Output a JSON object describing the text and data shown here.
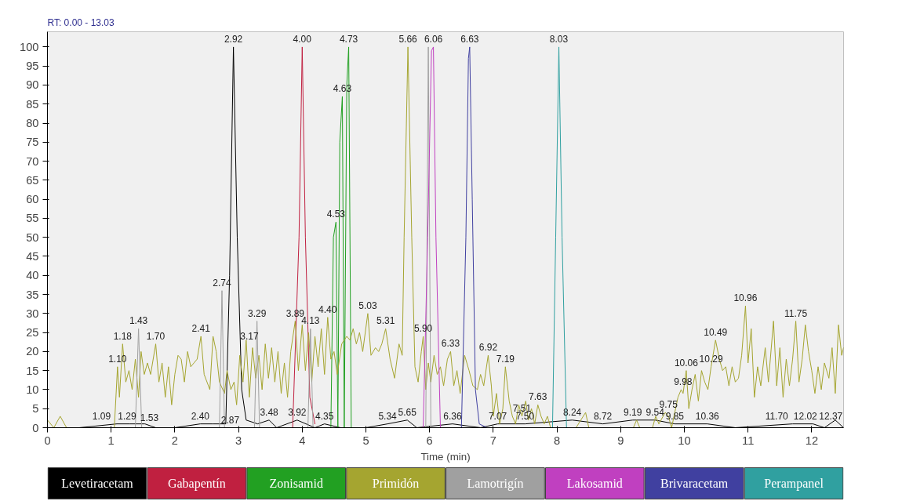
{
  "chart_data": {
    "type": "line",
    "xlabel": "Time (min)",
    "xlim": [
      0,
      12.5
    ],
    "ylim": [
      0,
      104
    ],
    "xticks": [
      0,
      1,
      2,
      3,
      4,
      5,
      6,
      7,
      8,
      9,
      10,
      11,
      12
    ],
    "yticks": [
      0,
      5,
      10,
      15,
      20,
      25,
      30,
      35,
      40,
      45,
      50,
      55,
      60,
      65,
      70,
      75,
      80,
      85,
      90,
      95,
      100
    ],
    "grid": false,
    "legend": "bottom",
    "marker": "none",
    "line_style": "solid",
    "series": [
      {
        "name": "Levetiracetam",
        "color": "#000000",
        "x": [
          0,
          0.5,
          1.09,
          1.29,
          1.53,
          1.7,
          2.0,
          2.4,
          2.6,
          2.8,
          2.86,
          2.92,
          2.98,
          3.05,
          3.12,
          3.3,
          3.48,
          3.6,
          3.92,
          4.2,
          4.35,
          4.6,
          5.0,
          5.34,
          5.65,
          5.8,
          6.36,
          6.8,
          7.07,
          7.5,
          8.24,
          8.72,
          9.19,
          9.54,
          9.85,
          10.36,
          10.8,
          11.7,
          12.02,
          12.2,
          12.37,
          12.5
        ],
        "values": [
          0,
          0,
          1,
          1,
          1,
          0,
          0,
          1,
          1,
          1,
          40,
          100,
          50,
          10,
          2,
          1,
          2,
          0,
          2,
          0,
          1,
          0,
          0,
          1,
          2,
          0,
          1,
          0,
          1,
          1,
          2,
          1,
          2,
          2,
          1,
          1,
          0,
          1,
          1,
          0,
          2,
          0
        ]
      },
      {
        "name": "Gabapentín",
        "color": "#c02040",
        "x": [
          0,
          3.85,
          3.95,
          4.0,
          4.05,
          4.12,
          4.2
        ],
        "values": [
          0,
          0,
          50,
          100,
          50,
          8,
          1
        ]
      },
      {
        "name": "Zonisamid",
        "color": "#22a022",
        "x": [
          0,
          4.45,
          4.49,
          4.53,
          4.56,
          4.59,
          4.63,
          4.66,
          4.7,
          4.73,
          4.77
        ],
        "values": [
          0,
          0,
          50,
          54,
          0,
          75,
          87,
          0,
          90,
          100,
          0
        ]
      },
      {
        "name": "Primidón",
        "color": "#a5a530",
        "x": [
          0,
          0.1,
          0.2,
          0.3,
          0.45,
          1.05,
          1.1,
          1.13,
          1.18,
          1.23,
          1.28,
          1.33,
          1.38,
          1.43,
          1.47,
          1.52,
          1.57,
          1.62,
          1.7,
          1.75,
          1.8,
          1.85,
          1.9,
          1.95,
          2.0,
          2.05,
          2.1,
          2.15,
          2.2,
          2.25,
          2.3,
          2.35,
          2.41,
          2.46,
          2.55,
          2.6,
          2.65,
          2.7,
          2.78,
          2.82,
          2.88,
          2.93,
          2.97,
          3.02,
          3.07,
          3.12,
          3.17,
          3.22,
          3.27,
          3.32,
          3.37,
          3.42,
          3.47,
          3.52,
          3.57,
          3.62,
          3.67,
          3.72,
          3.77,
          3.82,
          3.89,
          3.94,
          4.0,
          4.05,
          4.1,
          4.15,
          4.2,
          4.25,
          4.3,
          4.35,
          4.4,
          4.45,
          4.5,
          4.55,
          4.62,
          4.7,
          4.75,
          4.8,
          4.85,
          4.9,
          4.95,
          5.03,
          5.08,
          5.15,
          5.2,
          5.25,
          5.31,
          5.38,
          5.45,
          5.52,
          5.57,
          5.6,
          5.66,
          5.72,
          5.77,
          5.82,
          5.87,
          5.9,
          5.94,
          5.98,
          6.02,
          6.07,
          6.12,
          6.17,
          6.22,
          6.28,
          6.33,
          6.38,
          6.43,
          6.48,
          6.55,
          6.62,
          6.68,
          6.75,
          6.8,
          6.85,
          6.92,
          6.97,
          7.0,
          7.05,
          7.1,
          7.15,
          7.19,
          7.25,
          7.3,
          7.35,
          7.4,
          7.45,
          7.51,
          7.55,
          7.6,
          7.65,
          7.7,
          7.75,
          7.8,
          7.85,
          7.9,
          8.3,
          8.45,
          8.5,
          9.2,
          9.25,
          9.3,
          9.5,
          9.55,
          9.6,
          9.7,
          9.75,
          9.8,
          9.9,
          9.95,
          9.98,
          10.03,
          10.07,
          10.12,
          10.17,
          10.22,
          10.27,
          10.32,
          10.37,
          10.42,
          10.49,
          10.55,
          10.6,
          10.65,
          10.7,
          10.75,
          10.8,
          10.85,
          10.9,
          10.96,
          11.0,
          11.05,
          11.1,
          11.15,
          11.2,
          11.27,
          11.32,
          11.4,
          11.45,
          11.5,
          11.55,
          11.6,
          11.65,
          11.7,
          11.75,
          11.8,
          11.85,
          11.9,
          11.95,
          12.0,
          12.05,
          12.1,
          12.15,
          12.2,
          12.27,
          12.32,
          12.37,
          12.42,
          12.47,
          12.5
        ],
        "values": [
          2,
          0,
          3,
          0,
          0,
          0,
          16,
          8,
          22,
          12,
          15,
          10,
          18,
          8,
          20,
          14,
          17,
          14,
          22,
          12,
          17,
          8,
          16,
          6,
          14,
          19,
          18,
          12,
          20,
          16,
          17,
          18,
          24,
          14,
          10,
          24,
          20,
          12,
          9,
          15,
          10,
          12,
          6,
          19,
          12,
          23,
          8,
          21,
          13,
          19,
          10,
          22,
          13,
          21,
          12,
          20,
          9,
          17,
          8,
          20,
          28,
          15,
          27,
          15,
          25,
          12,
          24,
          16,
          26,
          14,
          29,
          18,
          20,
          14,
          22,
          24,
          23,
          26,
          22,
          25,
          20,
          30,
          19,
          21,
          20,
          22,
          26,
          18,
          13,
          22,
          19,
          50,
          100,
          50,
          16,
          12,
          20,
          24,
          10,
          17,
          12,
          19,
          14,
          16,
          11,
          18,
          20,
          11,
          15,
          9,
          19,
          15,
          11,
          10,
          14,
          11,
          19,
          11,
          3,
          9,
          1,
          5,
          16,
          7,
          3,
          1,
          6,
          3,
          7,
          2,
          5,
          1,
          6,
          3,
          1,
          3,
          0,
          0,
          4,
          0,
          0,
          2,
          0,
          0,
          3,
          1,
          4,
          3,
          0,
          8,
          10,
          9,
          15,
          5,
          10,
          14,
          7,
          15,
          12,
          10,
          16,
          23,
          18,
          15,
          16,
          11,
          16,
          12,
          13,
          19,
          32,
          17,
          26,
          8,
          16,
          11,
          21,
          12,
          28,
          11,
          21,
          8,
          18,
          11,
          18,
          28,
          12,
          18,
          27,
          20,
          15,
          9,
          16,
          10,
          17,
          13,
          21,
          9,
          27,
          19,
          21
        ]
      },
      {
        "name": "Lamotrigín",
        "color": "#a0a0a0",
        "x": [
          0,
          1.38,
          1.43,
          1.48,
          2.7,
          2.74,
          2.78,
          3.25,
          3.29,
          3.33,
          4.09,
          4.13,
          4.17,
          5.94,
          5.98,
          6.02
        ],
        "values": [
          0,
          0,
          26,
          0,
          0,
          36,
          0,
          0,
          28,
          0,
          0,
          26,
          0,
          0,
          100,
          0
        ]
      },
      {
        "name": "Lakosamid",
        "color": "#c040c0",
        "x": [
          0,
          5.9,
          5.97,
          6.03,
          6.06,
          6.1,
          6.17
        ],
        "values": [
          0,
          0,
          50,
          99,
          100,
          50,
          0
        ]
      },
      {
        "name": "Brivaracetam",
        "color": "#4040a0",
        "x": [
          0,
          6.5,
          6.57,
          6.61,
          6.63,
          6.67,
          6.72,
          6.78,
          6.9
        ],
        "values": [
          0,
          0,
          50,
          97,
          100,
          60,
          10,
          1,
          0
        ]
      },
      {
        "name": "Perampanel",
        "color": "#30a0a0",
        "x": [
          0,
          7.93,
          7.98,
          8.03,
          8.08,
          8.15
        ],
        "values": [
          0,
          0,
          50,
          100,
          50,
          0
        ]
      }
    ],
    "annotations": [
      "RT: 0.00 - 13.03",
      {
        "text": "1.09",
        "x": 0.85,
        "y": 1
      },
      {
        "text": "1.10",
        "x": 1.1,
        "y": 16
      },
      {
        "text": "1.18",
        "x": 1.18,
        "y": 22
      },
      {
        "text": "1.29",
        "x": 1.25,
        "y": 1
      },
      {
        "text": "1.43",
        "x": 1.43,
        "y": 26
      },
      {
        "text": "1.53",
        "x": 1.6,
        "y": 0.5
      },
      {
        "text": "1.70",
        "x": 1.7,
        "y": 22
      },
      {
        "text": "2.40",
        "x": 2.4,
        "y": 1
      },
      {
        "text": "2.41",
        "x": 2.41,
        "y": 24
      },
      {
        "text": "2.74",
        "x": 2.74,
        "y": 36
      },
      {
        "text": "2.87",
        "x": 2.87,
        "y": 0
      },
      {
        "text": "2.92",
        "x": 2.92,
        "y": 100
      },
      {
        "text": "3.17",
        "x": 3.17,
        "y": 22
      },
      {
        "text": "3.29",
        "x": 3.29,
        "y": 28
      },
      {
        "text": "3.48",
        "x": 3.48,
        "y": 2
      },
      {
        "text": "3.89",
        "x": 3.89,
        "y": 28
      },
      {
        "text": "3.92",
        "x": 3.92,
        "y": 2
      },
      {
        "text": "4.00",
        "x": 4.0,
        "y": 100
      },
      {
        "text": "4.13",
        "x": 4.13,
        "y": 26
      },
      {
        "text": "4.35",
        "x": 4.35,
        "y": 1
      },
      {
        "text": "4.40",
        "x": 4.4,
        "y": 29
      },
      {
        "text": "4.53",
        "x": 4.53,
        "y": 54
      },
      {
        "text": "4.63",
        "x": 4.63,
        "y": 87
      },
      {
        "text": "4.73",
        "x": 4.73,
        "y": 100
      },
      {
        "text": "5.03",
        "x": 5.03,
        "y": 30
      },
      {
        "text": "5.31",
        "x": 5.31,
        "y": 26
      },
      {
        "text": "5.34",
        "x": 5.34,
        "y": 1
      },
      {
        "text": "5.65",
        "x": 5.65,
        "y": 2
      },
      {
        "text": "5.66",
        "x": 5.66,
        "y": 100
      },
      {
        "text": "5.90",
        "x": 5.9,
        "y": 24
      },
      {
        "text": "6.06",
        "x": 6.06,
        "y": 100
      },
      {
        "text": "6.33",
        "x": 6.33,
        "y": 20
      },
      {
        "text": "6.36",
        "x": 6.36,
        "y": 1
      },
      {
        "text": "6.63",
        "x": 6.63,
        "y": 100
      },
      {
        "text": "6.92",
        "x": 6.92,
        "y": 19
      },
      {
        "text": "7.07",
        "x": 7.07,
        "y": 1
      },
      {
        "text": "7.19",
        "x": 7.19,
        "y": 16
      },
      {
        "text": "7.50",
        "x": 7.5,
        "y": 1
      },
      {
        "text": "7.51",
        "x": 7.45,
        "y": 3
      },
      {
        "text": "7.63",
        "x": 7.7,
        "y": 6
      },
      {
        "text": "8.03",
        "x": 8.03,
        "y": 100
      },
      {
        "text": "8.24",
        "x": 8.24,
        "y": 2
      },
      {
        "text": "8.72",
        "x": 8.72,
        "y": 1
      },
      {
        "text": "9.19",
        "x": 9.19,
        "y": 2
      },
      {
        "text": "9.54",
        "x": 9.54,
        "y": 2
      },
      {
        "text": "9.75",
        "x": 9.75,
        "y": 4
      },
      {
        "text": "9.85",
        "x": 9.85,
        "y": 1
      },
      {
        "text": "9.98",
        "x": 9.98,
        "y": 10
      },
      {
        "text": "10.06",
        "x": 10.03,
        "y": 15
      },
      {
        "text": "10.29",
        "x": 10.42,
        "y": 16
      },
      {
        "text": "10.36",
        "x": 10.36,
        "y": 1
      },
      {
        "text": "10.49",
        "x": 10.49,
        "y": 23
      },
      {
        "text": "10.96",
        "x": 10.96,
        "y": 32
      },
      {
        "text": "11.70",
        "x": 11.45,
        "y": 1
      },
      {
        "text": "11.75",
        "x": 11.75,
        "y": 28
      },
      {
        "text": "12.02",
        "x": 11.9,
        "y": 1
      },
      {
        "text": "12.37",
        "x": 12.3,
        "y": 1
      }
    ]
  }
}
